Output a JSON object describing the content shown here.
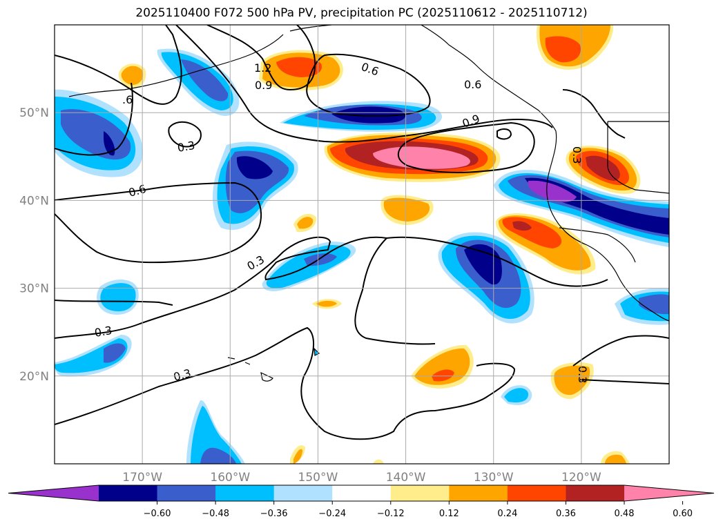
{
  "title": "2025110400 F072 500 hPa PV, precipitation PC (2025110612 - 2025110712)",
  "map": {
    "lon_range": [
      -180,
      -110
    ],
    "lat_range": [
      10,
      60
    ],
    "lon_ticks": [
      {
        "value": -170,
        "label": "170°W"
      },
      {
        "value": -160,
        "label": "160°W"
      },
      {
        "value": -150,
        "label": "150°W"
      },
      {
        "value": -140,
        "label": "140°W"
      },
      {
        "value": -130,
        "label": "130°W"
      },
      {
        "value": -120,
        "label": "120°W"
      }
    ],
    "lat_ticks": [
      {
        "value": 20,
        "label": "20°N"
      },
      {
        "value": 30,
        "label": "30°N"
      },
      {
        "value": 40,
        "label": "40°N"
      },
      {
        "value": 50,
        "label": "50°N"
      }
    ],
    "gridlines": true
  },
  "pv_contour_labels": [
    "1.2",
    "0.9",
    "0.6",
    "0.6",
    ".6",
    "0.9",
    "0.3",
    "0.6",
    "0.3",
    "0.3",
    "0.3",
    "0.3",
    "0.3"
  ],
  "colorbar": {
    "colors": [
      "#9932cc",
      "#00008b",
      "#3a5fcd",
      "#00bfff",
      "#b0e2ff",
      "#ffffff",
      "#ffec8b",
      "#ffa500",
      "#ff4500",
      "#b22222",
      "#ff82ab"
    ],
    "tick_labels": [
      "−0.60",
      "−0.48",
      "−0.36",
      "−0.24",
      "−0.12",
      "0.12",
      "0.24",
      "0.36",
      "0.48",
      "0.60"
    ],
    "extend": "both"
  }
}
